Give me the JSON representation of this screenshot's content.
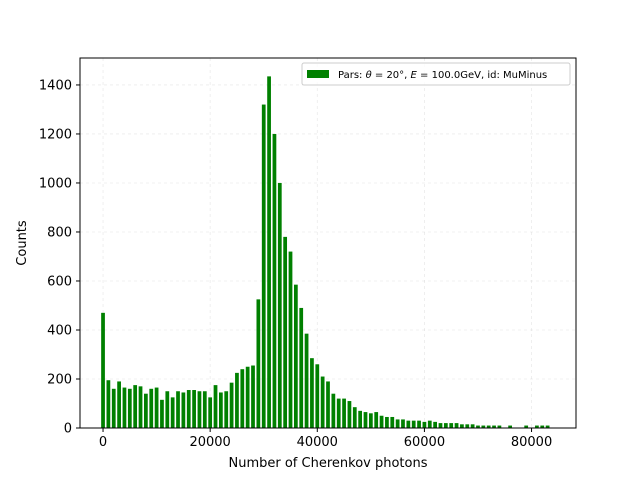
{
  "chart_data": {
    "type": "bar",
    "title": "",
    "xlabel": "Number of Cherenkov photons",
    "ylabel": "Counts",
    "xlim": [
      -4300,
      88300
    ],
    "ylim": [
      0,
      1510
    ],
    "xticks": [
      0,
      20000,
      40000,
      60000,
      80000
    ],
    "yticks": [
      0,
      200,
      400,
      600,
      800,
      1000,
      1200,
      1400
    ],
    "grid": true,
    "legend_position": "upper right",
    "bar_width": 700,
    "series": [
      {
        "name": "Pars: θ = 20°, E = 100.0GeV, id: MuMinus",
        "color": "#008000",
        "x": [
          0,
          1000,
          2000,
          3000,
          4000,
          5000,
          6000,
          7000,
          8000,
          9000,
          10000,
          11000,
          12000,
          13000,
          14000,
          15000,
          16000,
          17000,
          18000,
          19000,
          20000,
          21000,
          22000,
          23000,
          24000,
          25000,
          26000,
          27000,
          28000,
          29000,
          30000,
          31000,
          32000,
          33000,
          34000,
          35000,
          36000,
          37000,
          38000,
          39000,
          40000,
          41000,
          42000,
          43000,
          44000,
          45000,
          46000,
          47000,
          48000,
          49000,
          50000,
          51000,
          52000,
          53000,
          54000,
          55000,
          56000,
          57000,
          58000,
          59000,
          60000,
          61000,
          62000,
          63000,
          64000,
          65000,
          66000,
          67000,
          68000,
          69000,
          70000,
          71000,
          72000,
          73000,
          74000,
          76000,
          79000,
          81000,
          82000,
          83000
        ],
        "values": [
          470,
          195,
          160,
          190,
          165,
          160,
          175,
          170,
          140,
          160,
          165,
          115,
          150,
          125,
          150,
          145,
          155,
          155,
          150,
          150,
          125,
          175,
          145,
          150,
          185,
          225,
          240,
          250,
          255,
          525,
          1320,
          1435,
          1200,
          1000,
          780,
          720,
          585,
          490,
          385,
          285,
          260,
          210,
          190,
          140,
          120,
          120,
          110,
          85,
          70,
          65,
          60,
          65,
          50,
          45,
          45,
          35,
          35,
          30,
          30,
          30,
          25,
          30,
          25,
          20,
          20,
          20,
          20,
          15,
          15,
          15,
          10,
          10,
          10,
          10,
          10,
          10,
          10,
          10,
          10,
          10
        ]
      }
    ],
    "legend": {
      "prefix": "Pars: ",
      "theta_symbol": "θ",
      "theta_value": " = 20°, ",
      "energy_symbol": "E",
      "energy_value": " = 100.0GeV, id: MuMinus"
    }
  }
}
